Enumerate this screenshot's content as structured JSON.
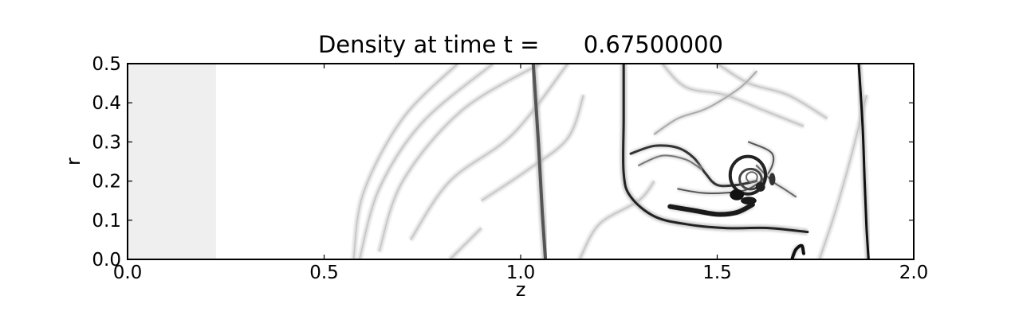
{
  "chart_data": {
    "type": "heatmap",
    "title": "Density at time t =      0.67500000",
    "xlabel": "z",
    "ylabel": "r",
    "xlim": [
      0.0,
      2.0
    ],
    "ylim": [
      0.0,
      0.5
    ],
    "xticks": [
      0.0,
      0.5,
      1.0,
      1.5,
      2.0
    ],
    "xtick_labels": [
      "0.0",
      "0.5",
      "1.0",
      "1.5",
      "2.0"
    ],
    "yticks": [
      0.0,
      0.1,
      0.2,
      0.3,
      0.4,
      0.5
    ],
    "ytick_labels": [
      "0.0",
      "0.1",
      "0.2",
      "0.3",
      "0.4",
      "0.5"
    ],
    "colormap": "grayscale",
    "grid": false,
    "features": {
      "light_block": {
        "z": [
          0.0,
          0.225
        ],
        "r": [
          0.0,
          0.5
        ],
        "shade": "#efefef"
      },
      "faint_arcs": [
        [
          [
            0.575,
            0.0
          ],
          [
            0.6,
            0.17
          ],
          [
            0.7,
            0.36
          ],
          [
            0.84,
            0.5
          ]
        ],
        [
          [
            0.59,
            0.0
          ],
          [
            0.64,
            0.18
          ],
          [
            0.75,
            0.35
          ],
          [
            0.93,
            0.5
          ]
        ],
        [
          [
            0.64,
            0.02
          ],
          [
            0.7,
            0.2
          ],
          [
            0.85,
            0.38
          ],
          [
            1.05,
            0.5
          ]
        ],
        [
          [
            0.72,
            0.05
          ],
          [
            0.82,
            0.2
          ],
          [
            0.98,
            0.32
          ],
          [
            1.12,
            0.5
          ]
        ],
        [
          [
            0.9,
            0.15
          ],
          [
            1.02,
            0.23
          ],
          [
            1.12,
            0.31
          ],
          [
            1.16,
            0.42
          ]
        ],
        [
          [
            1.15,
            0.0
          ],
          [
            1.2,
            0.09
          ],
          [
            1.3,
            0.15
          ],
          [
            1.34,
            0.2
          ]
        ],
        [
          [
            0.82,
            0.0
          ],
          [
            0.86,
            0.04
          ],
          [
            0.9,
            0.08
          ]
        ],
        [
          [
            1.36,
            0.5
          ],
          [
            1.42,
            0.44
          ],
          [
            1.52,
            0.42
          ],
          [
            1.62,
            0.38
          ],
          [
            1.72,
            0.34
          ]
        ],
        [
          [
            1.5,
            0.5
          ],
          [
            1.58,
            0.45
          ],
          [
            1.68,
            0.42
          ],
          [
            1.78,
            0.36
          ]
        ],
        [
          [
            1.76,
            0.0
          ],
          [
            1.8,
            0.12
          ],
          [
            1.84,
            0.26
          ],
          [
            1.88,
            0.42
          ]
        ]
      ],
      "contact_lines": [
        {
          "points": [
            [
              1.032,
              0.5
            ],
            [
              1.045,
              0.3
            ],
            [
              1.055,
              0.12
            ],
            [
              1.063,
              0.0
            ]
          ],
          "shade": "#555555",
          "width": 4
        },
        {
          "points": [
            [
              1.262,
              0.5
            ],
            [
              1.262,
              0.36
            ],
            [
              1.262,
              0.22
            ],
            [
              1.28,
              0.16
            ],
            [
              1.34,
              0.11
            ],
            [
              1.42,
              0.09
            ],
            [
              1.52,
              0.08
            ],
            [
              1.63,
              0.08
            ],
            [
              1.73,
              0.07
            ]
          ],
          "shade": "#222222",
          "width": 3
        },
        {
          "points": [
            [
              1.86,
              0.5
            ],
            [
              1.87,
              0.34
            ],
            [
              1.875,
              0.2
            ],
            [
              1.88,
              0.08
            ],
            [
              1.885,
              0.0
            ]
          ],
          "shade": "#111111",
          "width": 3
        }
      ],
      "vortex_strands": [
        {
          "points": [
            [
              1.28,
              0.27
            ],
            [
              1.34,
              0.29
            ],
            [
              1.4,
              0.285
            ],
            [
              1.44,
              0.26
            ],
            [
              1.47,
              0.22
            ],
            [
              1.5,
              0.19
            ],
            [
              1.55,
              0.19
            ],
            [
              1.6,
              0.2
            ]
          ],
          "shade": "#333333",
          "width": 3
        },
        {
          "points": [
            [
              1.3,
              0.24
            ],
            [
              1.36,
              0.265
            ],
            [
              1.42,
              0.255
            ],
            [
              1.46,
              0.23
            ]
          ],
          "shade": "#777777",
          "width": 2
        },
        {
          "points": [
            [
              1.38,
              0.135
            ],
            [
              1.44,
              0.125
            ],
            [
              1.5,
              0.115
            ],
            [
              1.55,
              0.12
            ],
            [
              1.59,
              0.14
            ]
          ],
          "shade": "#1a1a1a",
          "width": 6
        },
        {
          "points": [
            [
              1.34,
              0.32
            ],
            [
              1.4,
              0.36
            ],
            [
              1.46,
              0.38
            ],
            [
              1.5,
              0.4
            ],
            [
              1.56,
              0.44
            ],
            [
              1.6,
              0.48
            ]
          ],
          "shade": "#aaaaaa",
          "width": 2
        },
        {
          "points": [
            [
              1.4,
              0.18
            ],
            [
              1.46,
              0.17
            ],
            [
              1.52,
              0.17
            ],
            [
              1.58,
              0.18
            ],
            [
              1.63,
              0.22
            ],
            [
              1.64,
              0.27
            ],
            [
              1.58,
              0.3
            ]
          ],
          "shade": "#555555",
          "width": 2
        },
        {
          "points": [
            [
              1.6,
              0.24
            ],
            [
              1.64,
              0.2
            ],
            [
              1.67,
              0.18
            ],
            [
              1.7,
              0.16
            ]
          ],
          "shade": "#666666",
          "width": 2
        },
        {
          "points": [
            [
              1.69,
              0.0
            ],
            [
              1.7,
              0.025
            ],
            [
              1.715,
              0.035
            ],
            [
              1.72,
              0.015
            ]
          ],
          "shade": "#111111",
          "width": 4
        }
      ],
      "vortex_rings": [
        {
          "center": [
            1.578,
            0.215
          ],
          "r_z": 0.045,
          "r_r": 0.048,
          "shade": "#222222",
          "width": 4
        },
        {
          "center": [
            1.585,
            0.205
          ],
          "r_z": 0.028,
          "r_r": 0.026,
          "shade": "#444444",
          "width": 3
        },
        {
          "center": [
            1.588,
            0.21
          ],
          "r_z": 0.014,
          "r_r": 0.013,
          "shade": "#666666",
          "width": 2
        }
      ],
      "vortex_blobs": [
        {
          "center": [
            1.55,
            0.165
          ],
          "size": [
            0.018,
            0.014
          ],
          "shade": "#111111"
        },
        {
          "center": [
            1.61,
            0.185
          ],
          "size": [
            0.012,
            0.012
          ],
          "shade": "#222222"
        },
        {
          "center": [
            1.58,
            0.15
          ],
          "size": [
            0.02,
            0.01
          ],
          "shade": "#1a1a1a"
        },
        {
          "center": [
            1.64,
            0.205
          ],
          "size": [
            0.008,
            0.016
          ],
          "shade": "#333333"
        }
      ]
    }
  }
}
